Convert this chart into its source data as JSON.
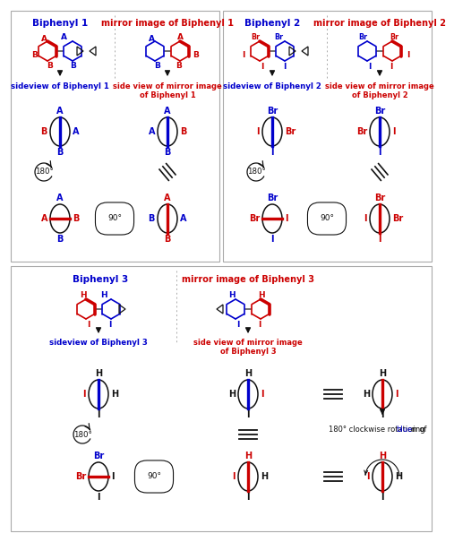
{
  "blue": "#0000cc",
  "red": "#cc0000",
  "black": "#111111",
  "bg": "#ffffff",
  "title_bp1": "Biphenyl 1",
  "title_mi1": "mirror image of Biphenyl 1",
  "title_bp2": "Biphenyl 2",
  "title_mi2": "mirror image of Biphenyl 2",
  "title_bp3": "Biphenyl 3",
  "title_mi3": "mirror image of Biphenyl 3",
  "sv_bp1": "sideview of Biphenyl 1",
  "sv_mi1": "side view of mirror image\nof Biphenyl 1",
  "sv_bp2": "sideview of Biphenyl 2",
  "sv_mi2": "side view of mirror image\nof Biphenyl 2",
  "sv_bp3": "sideview of Biphenyl 3",
  "sv_mi3": "side view of mirror image\nof Biphenyl 3",
  "rot180": "180°",
  "rot90": "90°",
  "clockwise_note1": "180° clockwise rotation of",
  "clockwise_note2": "blue",
  "clockwise_note3": "ring"
}
